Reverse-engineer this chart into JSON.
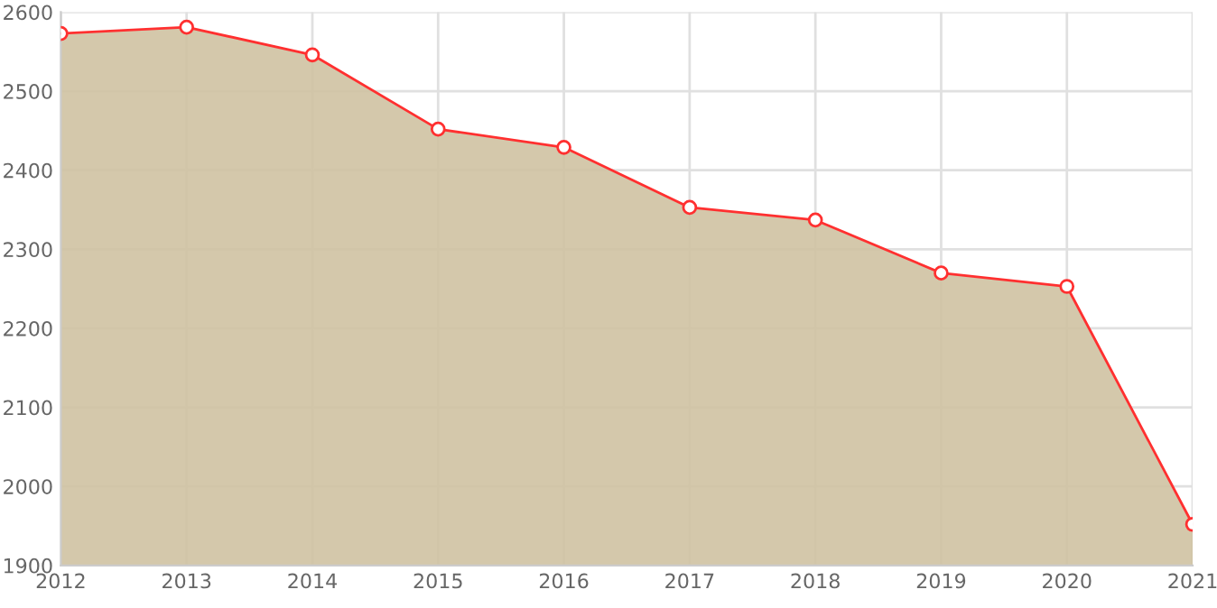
{
  "chart_data": {
    "type": "area",
    "categories": [
      "2012",
      "2013",
      "2014",
      "2015",
      "2016",
      "2017",
      "2018",
      "2019",
      "2020",
      "2021"
    ],
    "series": [
      {
        "color": "#ff3030",
        "values": [
          2573,
          2581,
          2546,
          2452,
          2429,
          2353,
          2337,
          2270,
          2253,
          1952
        ]
      }
    ],
    "ylim": [
      1900,
      2600
    ],
    "yticks": [
      1900,
      2000,
      2100,
      2200,
      2300,
      2400,
      2500,
      2600
    ],
    "grid": true,
    "marker": "circle",
    "line_style": "solid",
    "legend": false
  }
}
